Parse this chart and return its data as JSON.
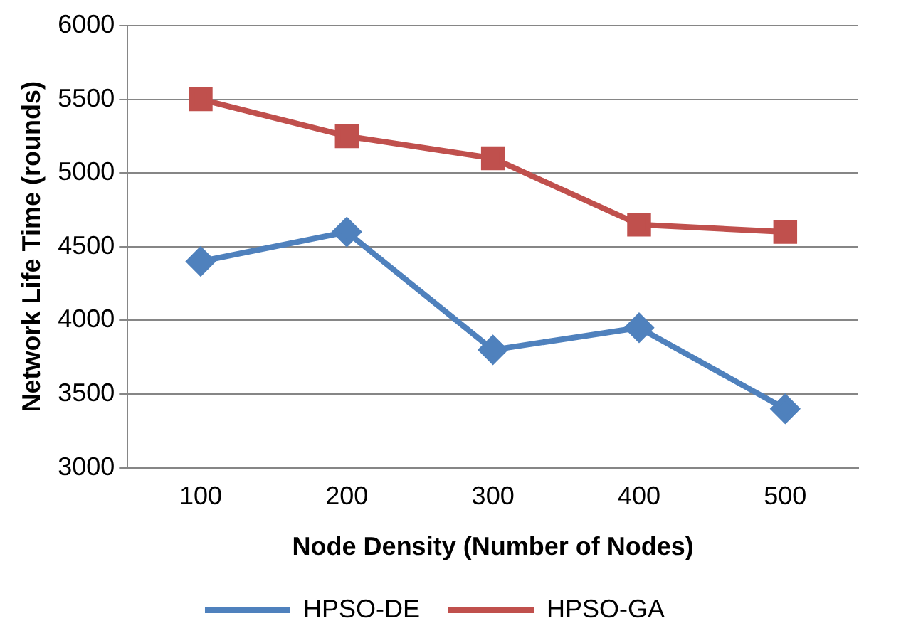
{
  "chart_data": {
    "type": "line",
    "xlabel": "Node Density (Number of Nodes)",
    "ylabel": "Network Life Time (rounds)",
    "categories": [
      "100",
      "200",
      "300",
      "400",
      "500"
    ],
    "series": [
      {
        "name": "HPSO-DE",
        "color": "#4f81bd",
        "marker": "diamond",
        "values": [
          4400,
          4600,
          3800,
          3950,
          3400
        ]
      },
      {
        "name": "HPSO-GA",
        "color": "#c0504d",
        "marker": "square",
        "values": [
          5500,
          5250,
          5100,
          4650,
          4600
        ]
      }
    ],
    "ylim": [
      3000,
      6000
    ],
    "yticks": [
      3000,
      3500,
      4000,
      4500,
      5000,
      5500,
      6000
    ],
    "grid": "y",
    "legend": "bottom",
    "line_style": "solid"
  }
}
